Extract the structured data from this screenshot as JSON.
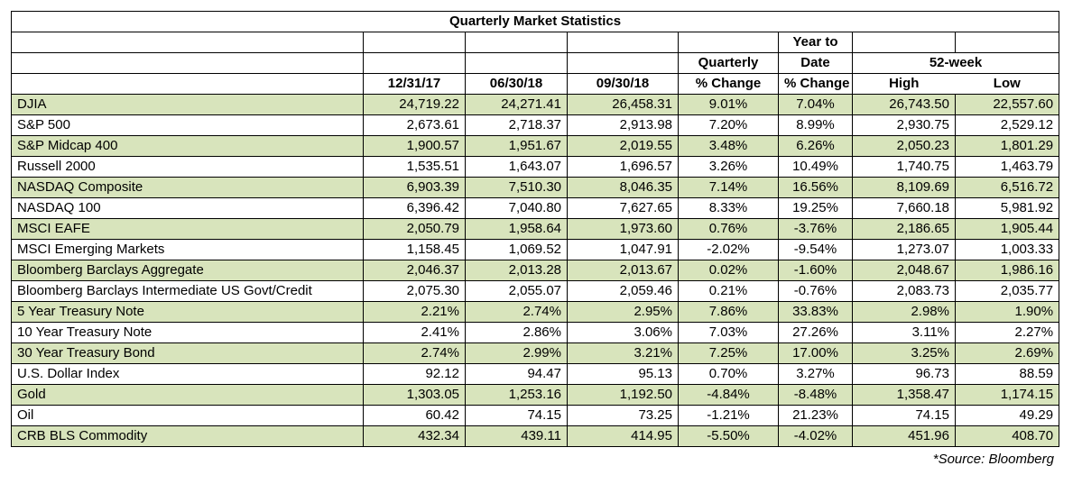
{
  "title": "Quarterly Market Statistics",
  "headers": {
    "col1": "12/31/17",
    "col2": "06/30/18",
    "col3": "09/30/18",
    "quarterly_top": "Quarterly",
    "quarterly_bottom": "% Change",
    "ytd_top": "Year to",
    "ytd_mid": "Date",
    "ytd_bottom": "% Change",
    "week52": "52-week",
    "high": "High",
    "low": "Low"
  },
  "rows": [
    {
      "name": "DJIA",
      "c1": "24,719.22",
      "c2": "24,271.41",
      "c3": "26,458.31",
      "q": "9.01%",
      "ytd": "7.04%",
      "high": "26,743.50",
      "low": "22,557.60"
    },
    {
      "name": "S&P 500",
      "c1": "2,673.61",
      "c2": "2,718.37",
      "c3": "2,913.98",
      "q": "7.20%",
      "ytd": "8.99%",
      "high": "2,930.75",
      "low": "2,529.12"
    },
    {
      "name": "S&P Midcap 400",
      "c1": "1,900.57",
      "c2": "1,951.67",
      "c3": "2,019.55",
      "q": "3.48%",
      "ytd": "6.26%",
      "high": "2,050.23",
      "low": "1,801.29"
    },
    {
      "name": "Russell 2000",
      "c1": "1,535.51",
      "c2": "1,643.07",
      "c3": "1,696.57",
      "q": "3.26%",
      "ytd": "10.49%",
      "high": "1,740.75",
      "low": "1,463.79"
    },
    {
      "name": "NASDAQ Composite",
      "c1": "6,903.39",
      "c2": "7,510.30",
      "c3": "8,046.35",
      "q": "7.14%",
      "ytd": "16.56%",
      "high": "8,109.69",
      "low": "6,516.72"
    },
    {
      "name": "NASDAQ 100",
      "c1": "6,396.42",
      "c2": "7,040.80",
      "c3": "7,627.65",
      "q": "8.33%",
      "ytd": "19.25%",
      "high": "7,660.18",
      "low": "5,981.92"
    },
    {
      "name": "MSCI EAFE",
      "c1": "2,050.79",
      "c2": "1,958.64",
      "c3": "1,973.60",
      "q": "0.76%",
      "ytd": "-3.76%",
      "high": "2,186.65",
      "low": "1,905.44"
    },
    {
      "name": "MSCI Emerging Markets",
      "c1": "1,158.45",
      "c2": "1,069.52",
      "c3": "1,047.91",
      "q": "-2.02%",
      "ytd": "-9.54%",
      "high": "1,273.07",
      "low": "1,003.33"
    },
    {
      "name": "Bloomberg Barclays Aggregate",
      "c1": "2,046.37",
      "c2": "2,013.28",
      "c3": "2,013.67",
      "q": "0.02%",
      "ytd": "-1.60%",
      "high": "2,048.67",
      "low": "1,986.16"
    },
    {
      "name": "Bloomberg Barclays Intermediate US Govt/Credit",
      "c1": "2,075.30",
      "c2": "2,055.07",
      "c3": "2,059.46",
      "q": "0.21%",
      "ytd": "-0.76%",
      "high": "2,083.73",
      "low": "2,035.77"
    },
    {
      "name": "5 Year Treasury Note",
      "c1": "2.21%",
      "c2": "2.74%",
      "c3": "2.95%",
      "q": "7.86%",
      "ytd": "33.83%",
      "high": "2.98%",
      "low": "1.90%"
    },
    {
      "name": "10 Year Treasury Note",
      "c1": "2.41%",
      "c2": "2.86%",
      "c3": "3.06%",
      "q": "7.03%",
      "ytd": "27.26%",
      "high": "3.11%",
      "low": "2.27%"
    },
    {
      "name": "30 Year Treasury Bond",
      "c1": "2.74%",
      "c2": "2.99%",
      "c3": "3.21%",
      "q": "7.25%",
      "ytd": "17.00%",
      "high": "3.25%",
      "low": "2.69%"
    },
    {
      "name": "U.S. Dollar Index",
      "c1": "92.12",
      "c2": "94.47",
      "c3": "95.13",
      "q": "0.70%",
      "ytd": "3.27%",
      "high": "96.73",
      "low": "88.59"
    },
    {
      "name": "Gold",
      "c1": "1,303.05",
      "c2": "1,253.16",
      "c3": "1,192.50",
      "q": "-4.84%",
      "ytd": "-8.48%",
      "high": "1,358.47",
      "low": "1,174.15"
    },
    {
      "name": "Oil",
      "c1": "60.42",
      "c2": "74.15",
      "c3": "73.25",
      "q": "-1.21%",
      "ytd": "21.23%",
      "high": "74.15",
      "low": "49.29"
    },
    {
      "name": "CRB BLS Commodity",
      "c1": "432.34",
      "c2": "439.11",
      "c3": "414.95",
      "q": "-5.50%",
      "ytd": "-4.02%",
      "high": "451.96",
      "low": "408.70"
    }
  ],
  "source": "*Source: Bloomberg",
  "colors": {
    "green_row": "#d8e4bc",
    "white_row": "#ffffff"
  }
}
